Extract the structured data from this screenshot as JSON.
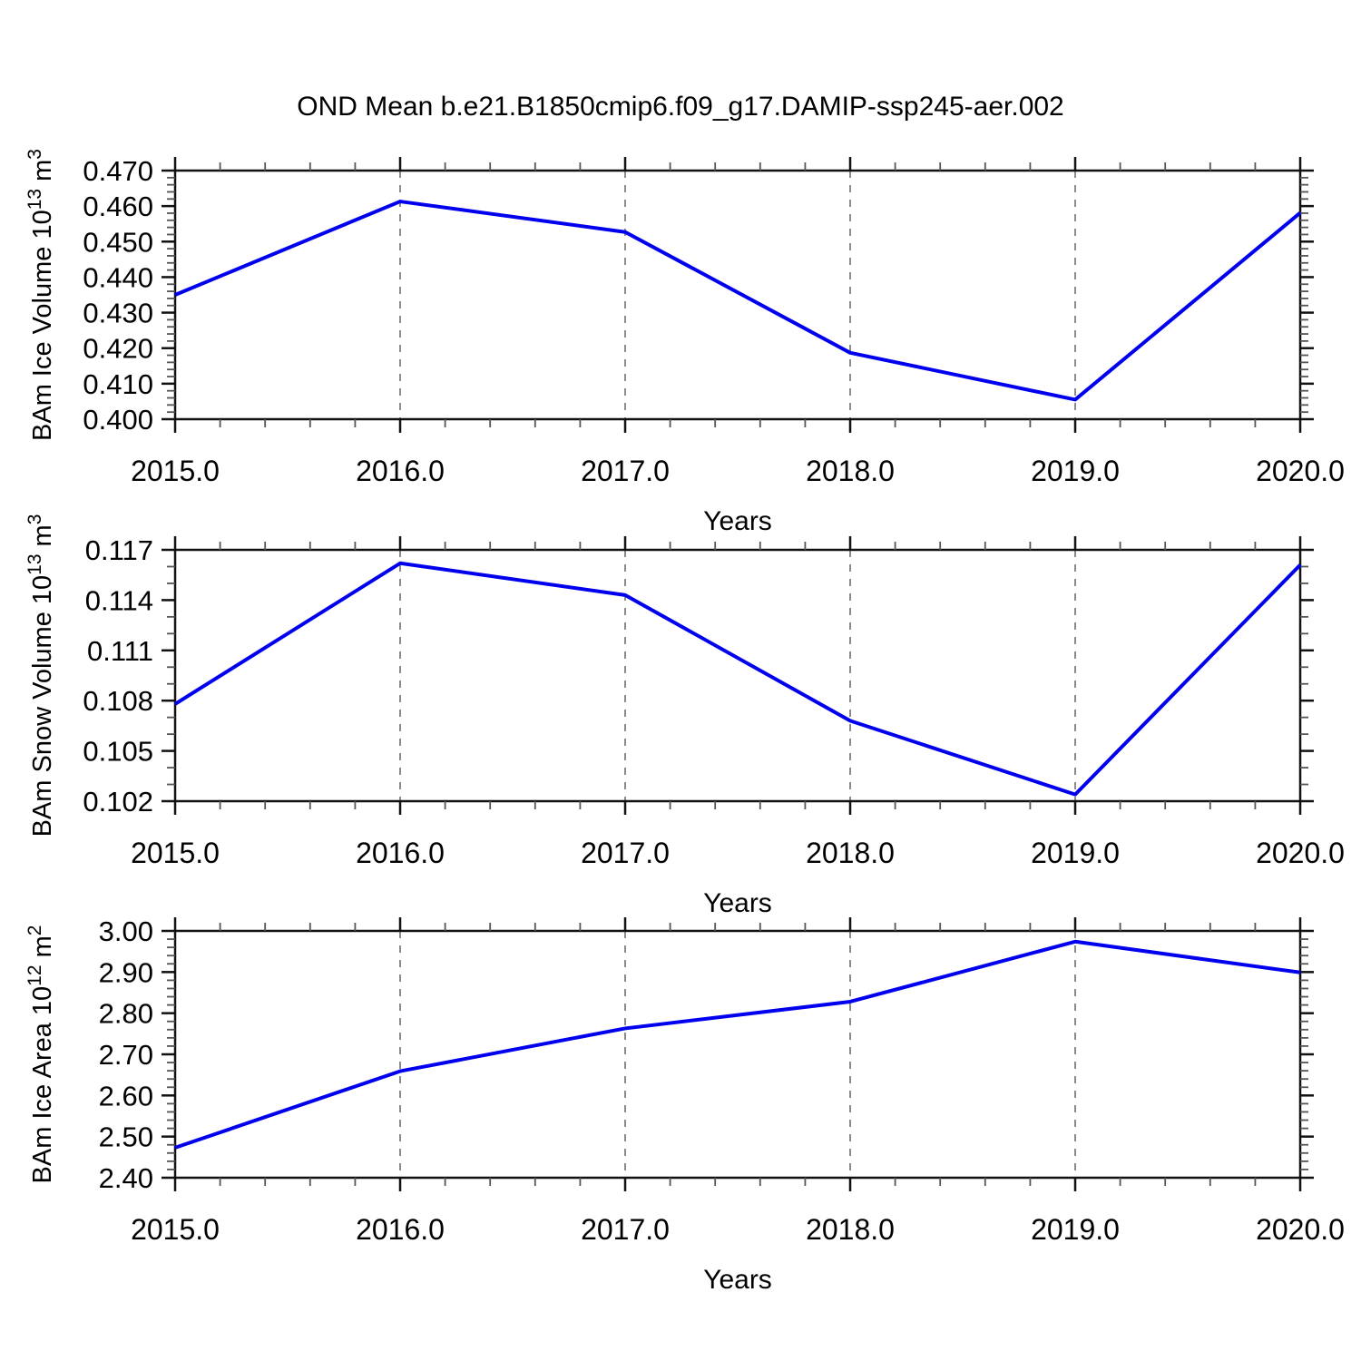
{
  "title": "OND Mean b.e21.B1850cmip6.f09_g17.DAMIP-ssp245-aer.002",
  "colors": {
    "background": "#FFFFFF",
    "line": "#0000EE",
    "axis": "#111111",
    "minor_tick": "#555555",
    "grid": "#808080",
    "text": "#000000"
  },
  "chart_data": [
    {
      "type": "line",
      "name": "ice-volume",
      "ylabel_text": "BAm Ice Volume 10^13 m^3",
      "ylabel_segments": [
        {
          "t": "BAm Ice Volume 10"
        },
        {
          "t": "13",
          "sup": true
        },
        {
          "t": " m"
        },
        {
          "t": "3",
          "sup": true
        }
      ],
      "xlabel": "Years",
      "x": [
        2015,
        2016,
        2017,
        2018,
        2019,
        2020
      ],
      "y": [
        0.435,
        0.4613,
        0.4527,
        0.4187,
        0.4055,
        0.4581
      ],
      "xlim": [
        2015,
        2020
      ],
      "ylim": [
        0.4,
        0.47
      ],
      "x_tick_values": [
        2015,
        2016,
        2017,
        2018,
        2019,
        2020
      ],
      "x_tick_labels": [
        "2015.0",
        "2016.0",
        "2017.0",
        "2018.0",
        "2019.0",
        "2020.0"
      ],
      "x_minor_step": 0.2,
      "y_tick_values": [
        0.4,
        0.41,
        0.42,
        0.43,
        0.44,
        0.45,
        0.46,
        0.47
      ],
      "y_tick_labels": [
        "0.400",
        "0.410",
        "0.420",
        "0.430",
        "0.440",
        "0.450",
        "0.460",
        "0.470"
      ],
      "y_major_step": 0.01,
      "y_minor_step": 0.002,
      "gridlines_x": [
        2016,
        2017,
        2018,
        2019
      ],
      "grid_style": "vertical-dashed",
      "legend": "none"
    },
    {
      "type": "line",
      "name": "snow-volume",
      "ylabel_text": "BAm Snow Volume 10^13 m^3",
      "ylabel_segments": [
        {
          "t": "BAm Snow Volume 10"
        },
        {
          "t": "13",
          "sup": true
        },
        {
          "t": " m"
        },
        {
          "t": "3",
          "sup": true
        }
      ],
      "xlabel": "Years",
      "x": [
        2015,
        2016,
        2017,
        2018,
        2019,
        2020
      ],
      "y": [
        0.1078,
        0.1162,
        0.1143,
        0.1068,
        0.1024,
        0.1161
      ],
      "xlim": [
        2015,
        2020
      ],
      "ylim": [
        0.102,
        0.117
      ],
      "x_tick_values": [
        2015,
        2016,
        2017,
        2018,
        2019,
        2020
      ],
      "x_tick_labels": [
        "2015.0",
        "2016.0",
        "2017.0",
        "2018.0",
        "2019.0",
        "2020.0"
      ],
      "x_minor_step": 0.2,
      "y_tick_values": [
        0.102,
        0.105,
        0.108,
        0.111,
        0.114,
        0.117
      ],
      "y_tick_labels": [
        "0.102",
        "0.105",
        "0.108",
        "0.111",
        "0.114",
        "0.117"
      ],
      "y_major_step": 0.003,
      "y_minor_step": 0.001,
      "gridlines_x": [
        2016,
        2017,
        2018,
        2019
      ],
      "grid_style": "vertical-dashed",
      "legend": "none"
    },
    {
      "type": "line",
      "name": "ice-area",
      "ylabel_text": "BAm Ice Area 10^12 m^2",
      "ylabel_segments": [
        {
          "t": "BAm Ice Area 10"
        },
        {
          "t": "12",
          "sup": true
        },
        {
          "t": " m"
        },
        {
          "t": "2",
          "sup": true
        }
      ],
      "xlabel": "Years",
      "x": [
        2015,
        2016,
        2017,
        2018,
        2019,
        2020
      ],
      "y": [
        2.473,
        2.659,
        2.763,
        2.828,
        2.974,
        2.899
      ],
      "xlim": [
        2015,
        2020
      ],
      "ylim": [
        2.4,
        3.0
      ],
      "x_tick_values": [
        2015,
        2016,
        2017,
        2018,
        2019,
        2020
      ],
      "x_tick_labels": [
        "2015.0",
        "2016.0",
        "2017.0",
        "2018.0",
        "2019.0",
        "2020.0"
      ],
      "x_minor_step": 0.2,
      "y_tick_values": [
        2.4,
        2.5,
        2.6,
        2.7,
        2.8,
        2.9,
        3.0
      ],
      "y_tick_labels": [
        "2.40",
        "2.50",
        "2.60",
        "2.70",
        "2.80",
        "2.90",
        "3.00"
      ],
      "y_major_step": 0.1,
      "y_minor_step": 0.02,
      "gridlines_x": [
        2016,
        2017,
        2018,
        2019
      ],
      "grid_style": "vertical-dashed",
      "legend": "none"
    }
  ]
}
